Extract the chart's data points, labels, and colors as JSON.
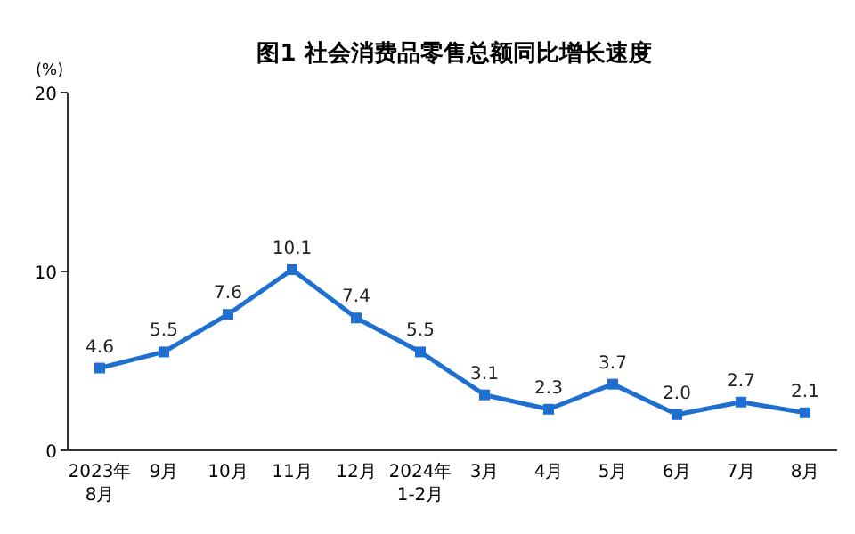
{
  "chart_data": {
    "type": "line",
    "title": "图1  社会消费品零售总额同比增长速度",
    "ylabel": "(%)",
    "categories": [
      "2023年\n8月",
      "9月",
      "10月",
      "11月",
      "12月",
      "2024年\n1-2月",
      "3月",
      "4月",
      "5月",
      "6月",
      "7月",
      "8月"
    ],
    "series": [
      {
        "color": "#1f6fd0",
        "values": [
          4.6,
          5.5,
          7.6,
          10.1,
          7.4,
          5.5,
          3.1,
          2.3,
          3.7,
          2.0,
          2.7,
          2.1
        ],
        "value_labels": [
          "4.6",
          "5.5",
          "7.6",
          "10.1",
          "7.4",
          "5.5",
          "3.1",
          "2.3",
          "3.7",
          "2.0",
          "2.7",
          "2.1"
        ]
      }
    ],
    "ylim": [
      0,
      20
    ],
    "yticks": [
      0,
      10,
      20
    ],
    "marker": "square"
  }
}
